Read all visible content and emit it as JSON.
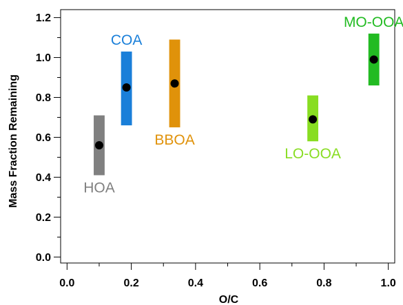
{
  "chart_data": {
    "type": "scatter",
    "title": "",
    "xlabel": "O/C",
    "ylabel": "Mass Fraction Remaining",
    "xlim": [
      -0.02,
      1.02
    ],
    "ylim": [
      -0.03,
      1.24
    ],
    "x_ticks": [
      0.0,
      0.2,
      0.4,
      0.6,
      0.8,
      1.0
    ],
    "y_ticks": [
      0.0,
      0.2,
      0.4,
      0.6,
      0.8,
      1.0,
      1.2
    ],
    "x_tick_labels": [
      "0.0",
      "0.2",
      "0.4",
      "0.6",
      "0.8",
      "1.0"
    ],
    "y_tick_labels": [
      "0.0",
      "0.2",
      "0.4",
      "0.6",
      "0.8",
      "1.0",
      "1.2"
    ],
    "grid": false,
    "series": [
      {
        "name": "HOA",
        "color": "#808080",
        "x": 0.1,
        "y": 0.56,
        "y_low": 0.41,
        "y_high": 0.71,
        "bar_width": 0.034,
        "label_pos": "below"
      },
      {
        "name": "COA",
        "color": "#1a7fd9",
        "x": 0.185,
        "y": 0.85,
        "y_low": 0.66,
        "y_high": 1.03,
        "bar_width": 0.034,
        "label_pos": "above"
      },
      {
        "name": "BBOA",
        "color": "#e0920a",
        "x": 0.335,
        "y": 0.87,
        "y_low": 0.65,
        "y_high": 1.09,
        "bar_width": 0.034,
        "label_pos": "below"
      },
      {
        "name": "LO-OOA",
        "color": "#88dd22",
        "x": 0.765,
        "y": 0.69,
        "y_low": 0.58,
        "y_high": 0.81,
        "bar_width": 0.034,
        "label_pos": "below"
      },
      {
        "name": "MO-OOA",
        "color": "#22bb22",
        "x": 0.955,
        "y": 0.99,
        "y_low": 0.86,
        "y_high": 1.12,
        "bar_width": 0.034,
        "label_pos": "above"
      }
    ]
  }
}
